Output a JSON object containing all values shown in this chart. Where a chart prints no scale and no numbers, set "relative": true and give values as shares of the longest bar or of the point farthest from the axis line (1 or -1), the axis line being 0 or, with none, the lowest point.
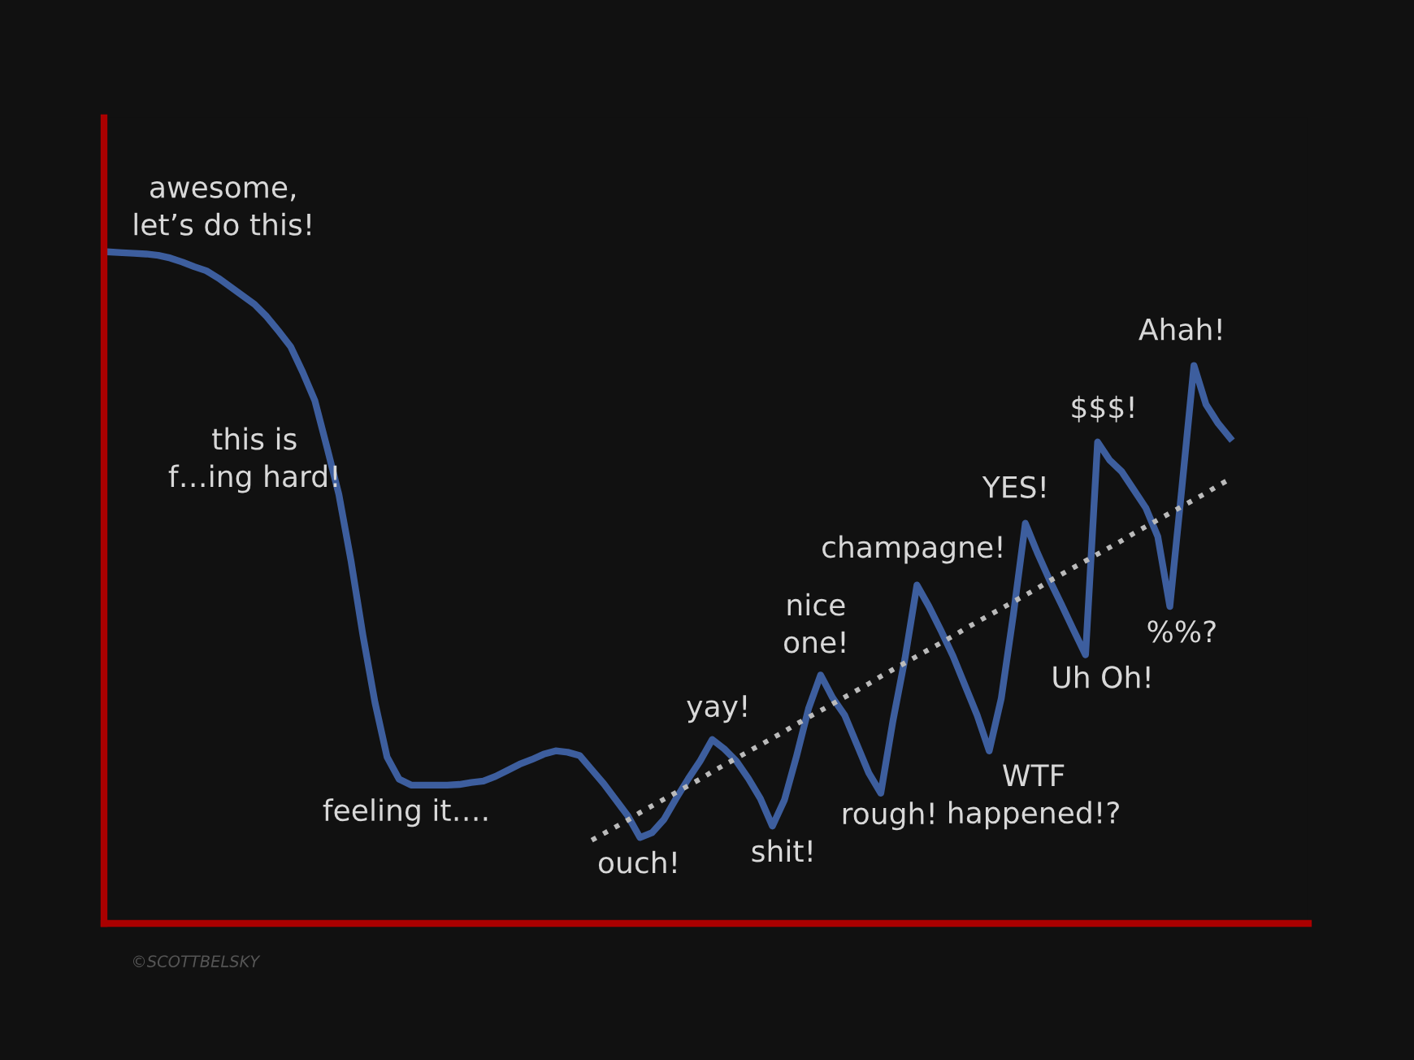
{
  "chart_data": {
    "type": "line",
    "relative": true,
    "legend": false,
    "marker": "none",
    "categories": [
      null,
      null,
      null,
      null,
      null,
      null,
      null,
      null,
      null,
      null,
      null,
      null,
      null,
      null,
      null,
      null,
      null,
      null,
      null,
      null,
      null,
      null,
      null,
      null,
      null,
      null,
      null,
      null,
      null,
      null,
      null,
      null,
      null,
      null,
      null,
      null,
      null,
      null,
      null,
      null,
      null,
      null,
      null,
      null,
      null,
      null,
      null,
      null,
      null,
      null,
      null,
      null,
      null,
      null,
      null,
      null,
      null,
      null,
      null,
      null,
      null,
      null,
      null,
      null,
      null,
      null,
      null,
      null,
      null,
      null,
      null,
      null,
      null,
      null,
      null,
      null,
      null,
      null,
      null,
      null,
      null,
      null,
      null,
      null,
      null,
      null,
      null,
      null,
      null,
      null,
      null,
      null,
      null,
      null
    ],
    "series": [
      {
        "color": "#3d5e9e",
        "line_style": "solid",
        "values": [
          1.0,
          0.999,
          0.998,
          0.997,
          0.995,
          0.991,
          0.985,
          0.978,
          0.972,
          0.961,
          0.948,
          0.935,
          0.922,
          0.904,
          0.882,
          0.859,
          0.821,
          0.779,
          0.71,
          0.639,
          0.541,
          0.429,
          0.329,
          0.248,
          0.215,
          0.206,
          0.206,
          0.206,
          0.206,
          0.207,
          0.21,
          0.212,
          0.219,
          0.228,
          0.237,
          0.244,
          0.252,
          0.257,
          0.255,
          0.25,
          0.229,
          0.208,
          0.184,
          0.16,
          0.128,
          0.135,
          0.155,
          0.186,
          0.215,
          0.242,
          0.274,
          0.26,
          0.242,
          0.216,
          0.186,
          0.145,
          0.184,
          0.249,
          0.32,
          0.37,
          0.336,
          0.31,
          0.267,
          0.224,
          0.194,
          0.301,
          0.394,
          0.504,
          0.472,
          0.436,
          0.398,
          0.354,
          0.31,
          0.257,
          0.335,
          0.459,
          0.596,
          0.552,
          0.512,
          0.475,
          0.437,
          0.4,
          0.717,
          0.69,
          0.673,
          0.646,
          0.619,
          0.576,
          0.472,
          0.649,
          0.831,
          0.773,
          0.745,
          0.723
        ]
      },
      {
        "color": "#bbbbbb",
        "line_style": "dotted",
        "values": [
          null,
          null,
          null,
          null,
          null,
          null,
          null,
          null,
          null,
          null,
          null,
          null,
          null,
          null,
          null,
          null,
          null,
          null,
          null,
          null,
          null,
          null,
          null,
          null,
          null,
          null,
          null,
          null,
          null,
          null,
          null,
          null,
          null,
          null,
          null,
          null,
          null,
          null,
          null,
          null,
          0.124,
          0.134,
          0.144,
          0.154,
          0.165,
          0.175,
          0.185,
          0.195,
          0.205,
          0.215,
          0.226,
          0.236,
          0.246,
          0.256,
          0.266,
          0.276,
          0.286,
          0.297,
          0.307,
          0.317,
          0.327,
          0.337,
          0.347,
          0.357,
          0.368,
          0.378,
          0.388,
          0.398,
          0.408,
          0.418,
          0.428,
          0.439,
          0.449,
          0.459,
          0.469,
          0.479,
          0.489,
          0.499,
          0.51,
          0.52,
          0.53,
          0.54,
          0.55,
          0.56,
          0.57,
          0.581,
          0.591,
          0.601,
          0.611,
          0.621,
          0.631,
          0.641,
          0.652,
          0.662
        ]
      }
    ],
    "annotations": [
      "awesome,\nlet’s do this!",
      "this is\nf…ing hard!",
      "feeling it….",
      "ouch!",
      "yay!",
      "shit!",
      "nice\none!",
      "rough!",
      "champagne!",
      "WTF\nhappened!?",
      "YES!",
      "Uh Oh!",
      "$$$!",
      "%%?",
      "Ahah!",
      "©SCOTTBELSKY"
    ]
  }
}
